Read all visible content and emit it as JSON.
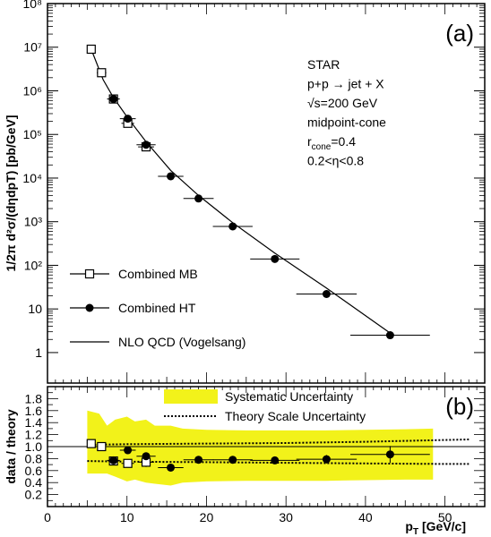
{
  "colors": {
    "syst_band": "#f2f21a",
    "ink": "#000000",
    "frame": "#000000"
  },
  "chart_data": [
    {
      "type": "scatter",
      "panel_label": "(a)",
      "ylabel": "1/2π d²σ/(dηdpT) [pb/GeV]",
      "yscale": "log",
      "xlim": [
        0,
        55
      ],
      "ylim": [
        0.2,
        100000000
      ],
      "y_tick_labels": [
        "1",
        "10",
        "10²",
        "10³",
        "10⁴",
        "10⁵",
        "10⁶",
        "10⁷",
        "10⁸"
      ],
      "annotation_lines": [
        "STAR",
        "p+p → jet + X",
        "√s=200  GeV",
        "midpoint-cone",
        "r_cone=0.4",
        "0.2<η<0.8"
      ],
      "legend": {
        "placement": "lower-left",
        "entries": [
          "Combined MB",
          "Combined HT",
          "NLO QCD (Vogelsang)"
        ]
      },
      "series": [
        {
          "name": "Combined MB",
          "marker": "open-square",
          "x": [
            5.5,
            6.8,
            8.3,
            10.1,
            12.4
          ],
          "y": [
            9000000,
            2600000,
            650000,
            180000,
            52000
          ],
          "xerr": [
            0.5,
            0.6,
            0.7,
            0.8,
            1.0
          ]
        },
        {
          "name": "Combined HT",
          "marker": "filled-circle",
          "x": [
            8.3,
            10.1,
            12.4,
            15.5,
            19.0,
            23.3,
            28.6,
            35.1,
            43.1
          ],
          "y": [
            650000,
            230000,
            58000,
            11000,
            3400,
            780,
            140,
            22,
            2.5
          ],
          "xerr": [
            0.8,
            1.0,
            1.2,
            1.6,
            1.9,
            2.5,
            3.1,
            3.8,
            5.0
          ]
        },
        {
          "name": "NLO QCD (Vogelsang)",
          "marker": "line",
          "x": [
            5.5,
            7,
            8.3,
            10.1,
            12.4,
            15.5,
            19.0,
            23.3,
            28.6,
            35.1,
            43.1
          ],
          "y": [
            9000000,
            1800000,
            700000,
            240000,
            68000,
            15000,
            4000,
            950,
            190,
            30,
            2.8
          ]
        }
      ]
    },
    {
      "type": "scatter",
      "panel_label": "(b)",
      "xlabel": "p_T  [GeV/c]",
      "ylabel": "data / theory",
      "xlim": [
        0,
        55
      ],
      "ylim": [
        0,
        2
      ],
      "x_ticks": [
        0,
        10,
        20,
        30,
        40,
        50
      ],
      "y_ticks": [
        0.2,
        0.4,
        0.6,
        0.8,
        1.0,
        1.2,
        1.4,
        1.6,
        1.8
      ],
      "y_tick_labels": [
        "0.2",
        "0.4",
        "0.6",
        "0.8",
        "1.0",
        "1.2",
        "1.4",
        "1.6",
        "1.8"
      ],
      "legend": {
        "placement": "top-right",
        "entries": [
          "Systematic Uncertainty",
          "Theory Scale Uncertainty"
        ]
      },
      "reference_line": 1.0,
      "systematic_band": {
        "x": [
          5.0,
          6.5,
          7.5,
          8.5,
          10.0,
          11.0,
          12.4,
          13.5,
          15.5,
          17.0,
          20.0,
          25.0,
          30.0,
          35.0,
          40.0,
          45.0,
          48.5
        ],
        "upper": [
          1.6,
          1.55,
          1.35,
          1.45,
          1.5,
          1.42,
          1.45,
          1.35,
          1.35,
          1.3,
          1.28,
          1.27,
          1.27,
          1.27,
          1.28,
          1.29,
          1.3
        ],
        "lower": [
          0.55,
          0.55,
          0.55,
          0.5,
          0.42,
          0.45,
          0.4,
          0.38,
          0.35,
          0.4,
          0.42,
          0.43,
          0.43,
          0.43,
          0.44,
          0.45,
          0.45
        ]
      },
      "theory_scale": {
        "x": [
          5.0,
          10.0,
          20.0,
          30.0,
          40.0,
          50.0,
          53.0
        ],
        "upper": [
          1.03,
          1.04,
          1.05,
          1.06,
          1.08,
          1.11,
          1.12
        ],
        "lower": [
          0.76,
          0.75,
          0.74,
          0.73,
          0.72,
          0.71,
          0.71
        ]
      },
      "series": [
        {
          "name": "Combined MB",
          "marker": "open-square",
          "x": [
            5.5,
            6.8,
            8.3,
            10.1,
            12.4
          ],
          "y": [
            1.05,
            1.0,
            0.76,
            0.72,
            0.74
          ],
          "xerr": [
            0.5,
            0.6,
            0.7,
            0.8,
            1.0
          ],
          "yerr": [
            0.05,
            0.05,
            0.06,
            0.07,
            0.08
          ]
        },
        {
          "name": "Combined HT",
          "marker": "filled-circle",
          "x": [
            8.3,
            10.1,
            12.4,
            15.5,
            19.0,
            23.3,
            28.6,
            35.1,
            43.1
          ],
          "y": [
            0.77,
            0.94,
            0.84,
            0.65,
            0.78,
            0.78,
            0.77,
            0.79,
            0.87
          ],
          "xerr": [
            0.8,
            1.0,
            1.2,
            1.6,
            1.9,
            2.5,
            3.1,
            3.8,
            5.0
          ],
          "yerr": [
            0.05,
            0.06,
            0.06,
            0.05,
            0.04,
            0.04,
            0.05,
            0.07,
            0.14
          ]
        }
      ]
    }
  ]
}
